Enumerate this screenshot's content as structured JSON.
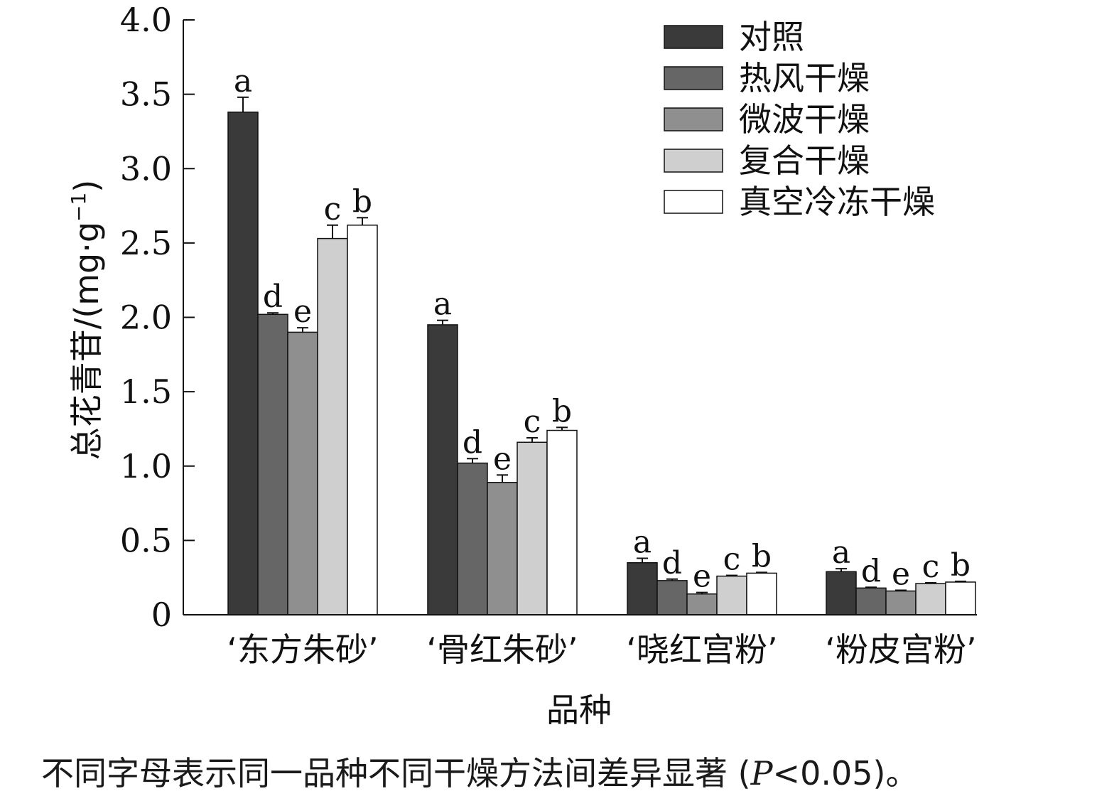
{
  "chart_data": {
    "type": "bar",
    "categories": [
      "‘东方朱砂’",
      "‘骨红朱砂’",
      "‘晓红宫粉’",
      "‘粉皮宫粉’"
    ],
    "series": [
      {
        "name": "对照",
        "color": "#3a3a3a",
        "values": [
          3.38,
          1.95,
          0.35,
          0.29
        ],
        "errors": [
          0.1,
          0.03,
          0.03,
          0.02
        ],
        "letters": [
          "a",
          "a",
          "a",
          "a"
        ]
      },
      {
        "name": "热风干燥",
        "color": "#666666",
        "values": [
          2.02,
          1.02,
          0.23,
          0.18
        ],
        "errors": [
          0.01,
          0.03,
          0.01,
          0.005
        ],
        "letters": [
          "d",
          "d",
          "d",
          "d"
        ]
      },
      {
        "name": "微波干燥",
        "color": "#8f8f8f",
        "values": [
          1.9,
          0.89,
          0.14,
          0.16
        ],
        "errors": [
          0.03,
          0.05,
          0.01,
          0.005
        ],
        "letters": [
          "e",
          "e",
          "e",
          "e"
        ]
      },
      {
        "name": "复合干燥",
        "color": "#cfcfcf",
        "values": [
          2.53,
          1.16,
          0.26,
          0.21
        ],
        "errors": [
          0.09,
          0.03,
          0.005,
          0.005
        ],
        "letters": [
          "c",
          "c",
          "c",
          "c"
        ]
      },
      {
        "name": "真空冷冻干燥",
        "color": "#ffffff",
        "values": [
          2.62,
          1.24,
          0.28,
          0.22
        ],
        "errors": [
          0.05,
          0.02,
          0.005,
          0.005
        ],
        "letters": [
          "b",
          "b",
          "b",
          "b"
        ]
      }
    ],
    "ylim": [
      0,
      4.0
    ],
    "yticks": [
      "0",
      "0.5",
      "1.0",
      "1.5",
      "2.0",
      "2.5",
      "3.0",
      "3.5",
      "4.0"
    ],
    "ylabel": "总花青苷/(mg·g",
    "ylabel_sup": "−1",
    "ylabel_close": ")",
    "xlabel": "品种",
    "legend_position": "top-right",
    "grid": false
  },
  "footnote": {
    "text_main": "不同字母表示同一品种不同干燥方法间差异显著 (",
    "text_p": "P",
    "text_tail": "<0.05)。"
  }
}
